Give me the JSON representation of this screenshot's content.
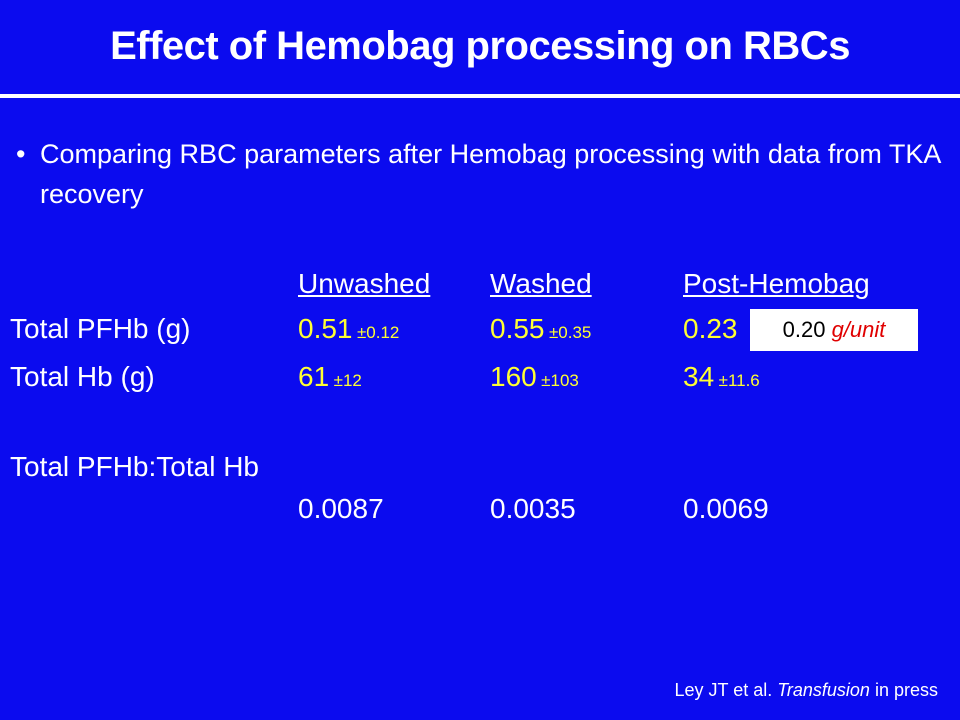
{
  "title": "Effect of Hemobag processing on RBCs",
  "bullet": "Comparing RBC parameters after Hemobag processing with data from TKA recovery",
  "table": {
    "headers": [
      "Unwashed",
      "Washed",
      "Post-Hemobag"
    ],
    "rows": [
      {
        "label": "Total PFHb (g)",
        "cells": [
          {
            "value": "0.51",
            "sd": "±0.12"
          },
          {
            "value": "0.55",
            "sd": "±0.35"
          },
          {
            "value": "0.23"
          }
        ]
      },
      {
        "label": "Total Hb (g)",
        "cells": [
          {
            "value": "61",
            "sd": "±12"
          },
          {
            "value": "160",
            "sd": "±103"
          },
          {
            "value": "34",
            "sd": "±11.6"
          }
        ]
      }
    ],
    "ratio": {
      "label": "Total PFHb:Total Hb",
      "values": [
        "0.0087",
        "0.0035",
        "0.0069"
      ]
    }
  },
  "callout": {
    "value": "0.20",
    "unit": "g/unit"
  },
  "citation": {
    "authors": "Ley JT et al.",
    "journal": "Transfusion",
    "status": "in press"
  }
}
